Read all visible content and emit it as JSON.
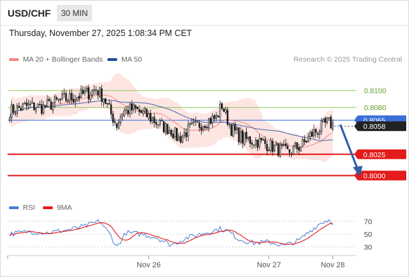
{
  "header": {
    "symbol": "USD/CHF",
    "timeframe": "30 MIN",
    "datetime": "Thursday, November 27, 2025 1:08:34 PM CET"
  },
  "legend": {
    "ma20_bb": {
      "label": "MA 20 + Bollinger Bands",
      "color": "#f28b82"
    },
    "ma50": {
      "label": "MA 50",
      "color": "#1f4e99"
    },
    "rsi": {
      "label": "RSI",
      "color": "#4a7fd6"
    },
    "rsi_ma": {
      "label": "9MA",
      "color": "#e31b1b"
    }
  },
  "attribution": "Research © 2025 Trading Central",
  "colors": {
    "up": "#1a1a1a",
    "down": "#1a1a1a",
    "resistance": "#8fcb5a",
    "support": "#e31b1b",
    "current": "#3a6fd8",
    "arrow": "#2f5fa8",
    "band": "#fde0dd"
  },
  "chart_data": {
    "type": "candlestick",
    "title": "USD/CHF",
    "ylim": [
      0.798,
      0.8125
    ],
    "x_ticks": [
      {
        "label": "Nov 26",
        "index": 74
      },
      {
        "label": "Nov 27",
        "index": 138
      },
      {
        "label": "Nov 28",
        "index": 172
      }
    ],
    "price_levels": [
      {
        "label": "0.8100",
        "value": 0.81,
        "role": "resistance"
      },
      {
        "label": "0.8080",
        "value": 0.808,
        "role": "resistance"
      },
      {
        "label": "0.8065",
        "value": 0.8065,
        "role": "current"
      },
      {
        "label": "0.8058",
        "value": 0.8058,
        "role": "last"
      },
      {
        "label": "0.8025",
        "value": 0.8025,
        "role": "support"
      },
      {
        "label": "0.8000",
        "value": 0.8,
        "role": "support"
      }
    ],
    "forecast_arrow": {
      "from": {
        "index": 176,
        "value": 0.806
      },
      "to": {
        "index": 186,
        "value": 0.8
      }
    },
    "anchors": [
      [
        0,
        0.8076
      ],
      [
        10,
        0.8082
      ],
      [
        18,
        0.808
      ],
      [
        26,
        0.8088
      ],
      [
        34,
        0.8092
      ],
      [
        42,
        0.8097
      ],
      [
        46,
        0.8102
      ],
      [
        50,
        0.8092
      ],
      [
        54,
        0.8072
      ],
      [
        57,
        0.806
      ],
      [
        60,
        0.8075
      ],
      [
        66,
        0.8078
      ],
      [
        72,
        0.8072
      ],
      [
        80,
        0.806
      ],
      [
        86,
        0.8053
      ],
      [
        90,
        0.8043
      ],
      [
        96,
        0.8055
      ],
      [
        104,
        0.8063
      ],
      [
        110,
        0.8068
      ],
      [
        113,
        0.8083
      ],
      [
        118,
        0.8055
      ],
      [
        124,
        0.8043
      ],
      [
        132,
        0.804
      ],
      [
        138,
        0.8036
      ],
      [
        144,
        0.803
      ],
      [
        148,
        0.8027
      ],
      [
        152,
        0.8032
      ],
      [
        156,
        0.8036
      ],
      [
        160,
        0.8047
      ],
      [
        165,
        0.8055
      ],
      [
        169,
        0.8062
      ],
      [
        172,
        0.806
      ]
    ],
    "rsi": {
      "levels": [
        70,
        50,
        30
      ],
      "ylim": [
        20,
        80
      ],
      "anchors": [
        [
          0,
          50
        ],
        [
          10,
          54
        ],
        [
          20,
          52
        ],
        [
          30,
          56
        ],
        [
          40,
          62
        ],
        [
          48,
          70
        ],
        [
          54,
          47
        ],
        [
          57,
          30
        ],
        [
          62,
          52
        ],
        [
          70,
          50
        ],
        [
          78,
          45
        ],
        [
          86,
          33
        ],
        [
          94,
          44
        ],
        [
          104,
          52
        ],
        [
          112,
          58
        ],
        [
          116,
          55
        ],
        [
          122,
          42
        ],
        [
          130,
          36
        ],
        [
          138,
          38
        ],
        [
          146,
          32
        ],
        [
          154,
          40
        ],
        [
          160,
          55
        ],
        [
          166,
          68
        ],
        [
          170,
          72
        ],
        [
          172,
          68
        ]
      ]
    }
  }
}
